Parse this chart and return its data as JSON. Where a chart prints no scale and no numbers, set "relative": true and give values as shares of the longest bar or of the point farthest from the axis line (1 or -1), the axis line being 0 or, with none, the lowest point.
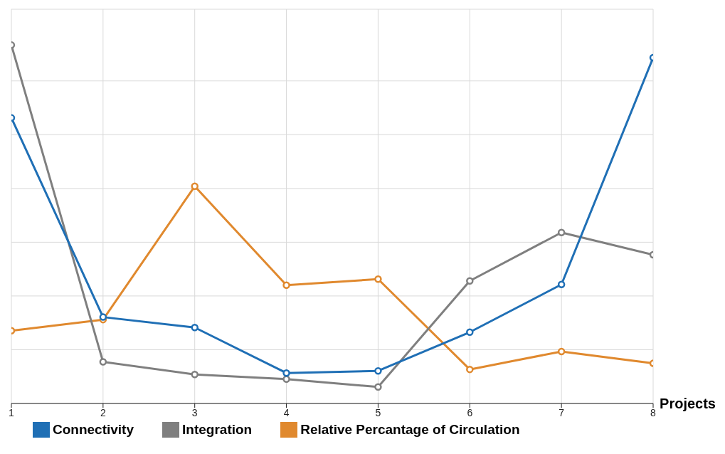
{
  "chart_data": {
    "type": "line",
    "relative": true,
    "xlabel": "Projects",
    "categories": [
      "1",
      "2",
      "3",
      "4",
      "5",
      "6",
      "7",
      "8"
    ],
    "series": [
      {
        "name": "Connectivity",
        "color": "#1f6fb5",
        "values": [
          0.797,
          0.241,
          0.212,
          0.085,
          0.091,
          0.199,
          0.332,
          0.965
        ]
      },
      {
        "name": "Integration",
        "color": "#7f7f7f",
        "values": [
          1,
          0.116,
          0.081,
          0.068,
          0.046,
          0.342,
          0.477,
          0.415
        ]
      },
      {
        "name": "Relative Percantage of Circulation",
        "color": "#e0892e",
        "values": [
          0.203,
          0.234,
          0.606,
          0.33,
          0.347,
          0.095,
          0.145,
          0.112
        ]
      }
    ],
    "grid": true,
    "legend": "bottom",
    "marker": "circle",
    "line_style": "solid"
  }
}
